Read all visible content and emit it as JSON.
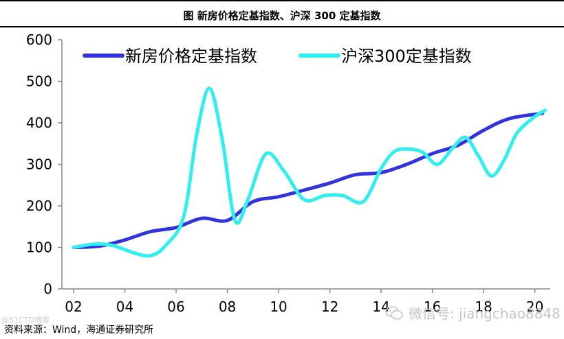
{
  "figure": {
    "title": "图  新房价格定基指数、沪深 300 定基指数",
    "source": "资料来源：Wind，海通证券研究所",
    "watermark": "微信号: jiangchao8848",
    "corner_mark": "@51CTO博客"
  },
  "chart_data": {
    "type": "line",
    "title": "",
    "xlabel": "",
    "ylabel": "",
    "ylim": [
      0,
      600
    ],
    "y_ticks": [
      0,
      100,
      200,
      300,
      400,
      500,
      600
    ],
    "xlim": [
      2002,
      2020.6
    ],
    "x_ticks": [
      2002,
      2004,
      2006,
      2008,
      2010,
      2012,
      2014,
      2016,
      2018,
      2020
    ],
    "x_tick_labels": [
      "02",
      "04",
      "06",
      "08",
      "10",
      "12",
      "14",
      "16",
      "18",
      "20"
    ],
    "grid": false,
    "legend_position": "top",
    "series": [
      {
        "name": "新房价格定基指数",
        "color": "#3333dd",
        "x": [
          2002.0,
          2003.0,
          2004.0,
          2005.0,
          2006.0,
          2007.0,
          2008.0,
          2009.0,
          2010.0,
          2011.0,
          2012.0,
          2013.0,
          2014.0,
          2015.0,
          2016.0,
          2017.0,
          2018.0,
          2019.0,
          2020.3
        ],
        "values": [
          100,
          103,
          118,
          138,
          148,
          170,
          165,
          210,
          222,
          238,
          255,
          275,
          280,
          300,
          326,
          346,
          382,
          410,
          423
        ]
      },
      {
        "name": "沪深300定基指数",
        "color": "#33eeee",
        "x": [
          2002.0,
          2002.8,
          2003.5,
          2004.3,
          2005.0,
          2005.6,
          2006.3,
          2006.8,
          2007.3,
          2007.8,
          2008.3,
          2008.8,
          2009.5,
          2010.2,
          2011.0,
          2011.8,
          2012.5,
          2013.3,
          2014.0,
          2014.5,
          2015.0,
          2015.6,
          2016.2,
          2016.8,
          2017.3,
          2017.8,
          2018.3,
          2018.8,
          2019.3,
          2020.0,
          2020.4
        ],
        "values": [
          100,
          108,
          105,
          88,
          80,
          105,
          175,
          370,
          483,
          360,
          165,
          215,
          325,
          285,
          215,
          225,
          225,
          210,
          290,
          330,
          337,
          330,
          300,
          340,
          365,
          320,
          272,
          310,
          375,
          415,
          430
        ]
      }
    ]
  }
}
